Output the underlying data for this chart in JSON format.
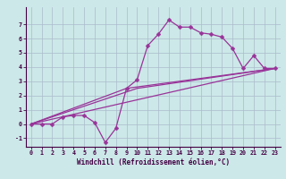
{
  "title": "",
  "xlabel": "Windchill (Refroidissement éolien,°C)",
  "background_color": "#cce8e8",
  "plot_bg_color": "#cce8e8",
  "grid_color": "#aabbcc",
  "line_color": "#993399",
  "xlim": [
    -0.5,
    23.5
  ],
  "ylim": [
    -1.6,
    8.2
  ],
  "yticks": [
    -1,
    0,
    1,
    2,
    3,
    4,
    5,
    6,
    7
  ],
  "xticks": [
    0,
    1,
    2,
    3,
    4,
    5,
    6,
    7,
    8,
    9,
    10,
    11,
    12,
    13,
    14,
    15,
    16,
    17,
    18,
    19,
    20,
    21,
    22,
    23
  ],
  "line1_x": [
    0,
    1,
    2,
    3,
    4,
    5,
    6,
    7,
    8,
    9,
    10,
    11,
    12,
    13,
    14,
    15,
    16,
    17,
    18,
    19,
    20,
    21,
    22,
    23
  ],
  "line1_y": [
    0.0,
    0.0,
    0.0,
    0.5,
    0.6,
    0.6,
    0.1,
    -1.3,
    -0.3,
    2.5,
    3.1,
    5.5,
    6.3,
    7.3,
    6.8,
    6.8,
    6.4,
    6.3,
    6.1,
    5.3,
    3.9,
    4.8,
    3.9,
    3.9
  ],
  "line2_x": [
    0,
    23
  ],
  "line2_y": [
    0.0,
    3.9
  ],
  "line3_x": [
    0,
    10,
    23
  ],
  "line3_y": [
    0.0,
    2.5,
    3.9
  ],
  "line4_x": [
    0,
    9,
    23
  ],
  "line4_y": [
    0.0,
    2.5,
    3.9
  ],
  "markersize": 2.5,
  "linewidth": 0.9,
  "axis_fontsize": 5.5,
  "tick_fontsize": 4.8
}
